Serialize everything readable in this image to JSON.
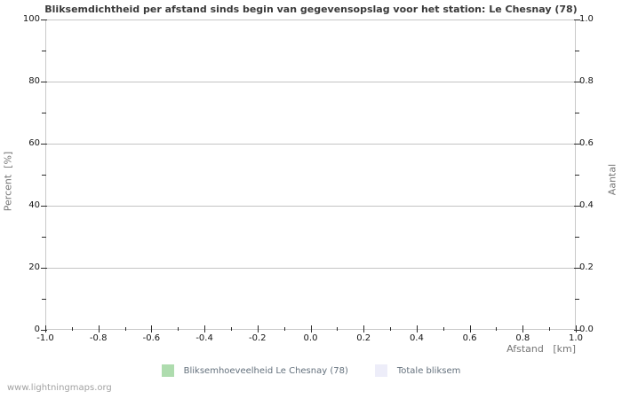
{
  "watermark": "www.lightningmaps.org",
  "chart_data": {
    "type": "bar",
    "title": "Bliksemdichtheid per afstand sinds begin van gegevensopslag voor het station: Le Chesnay (78)",
    "xlabel": "Afstand   [km]",
    "ylabel_left": "Percent  [%]",
    "ylabel_right": "Aantal",
    "xlim": [
      -1.0,
      1.0
    ],
    "ylim_left": [
      0,
      100
    ],
    "ylim_right": [
      0.0,
      1.0
    ],
    "x_tick_labels": [
      "-1.0",
      "-0.8",
      "-0.6",
      "-0.4",
      "-0.2",
      "0.0",
      "0.2",
      "0.4",
      "0.6",
      "0.8",
      "1.0"
    ],
    "x_minor_ticks_per_interval": 1,
    "y_tick_labels_left": [
      "100",
      "80",
      "60",
      "40",
      "20",
      "0"
    ],
    "y_tick_labels_right": [
      "1.0",
      "0.8",
      "0.6",
      "0.4",
      "0.2",
      "0.0"
    ],
    "y_minor_ticks_per_interval": 1,
    "grid": "horizontal-major-only",
    "legend_position": "bottom-center",
    "series": [
      {
        "name": "Bliksemhoeveelheid Le Chesnay (78)",
        "color": "#aedcae",
        "x": [],
        "values": []
      },
      {
        "name": "Totale bliksem",
        "color": "#ededf9",
        "x": [],
        "values": []
      }
    ],
    "colors": {
      "background": "#ffffff",
      "frame": "#c9c9c9",
      "grid": "#c4c4c4",
      "tick": "#2b2b2b",
      "tick_label": "#141414",
      "title": "#3a3a3a",
      "axis_label": "#757575",
      "legend_text": "#63707c",
      "watermark": "#a2a2a2"
    }
  }
}
